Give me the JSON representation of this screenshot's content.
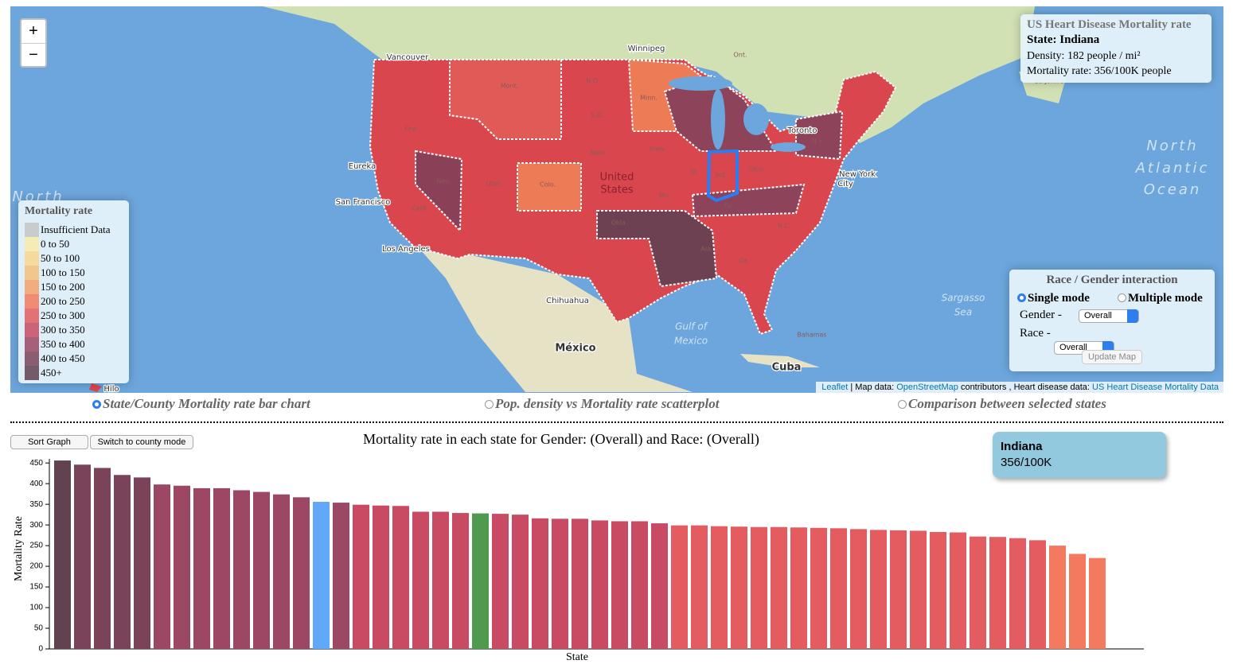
{
  "map": {
    "zoom_in": "+",
    "zoom_out": "−",
    "labels": [
      "Vancouver",
      "Winnipeg",
      "Ont.",
      "Eureka",
      "San Francisco",
      "Los Angeles",
      "Chihuahua",
      "México",
      "Gulf of",
      "Mexico",
      "Cuba",
      "Bahamas",
      "Toronto",
      "New York",
      "City",
      "North",
      "Atlantic",
      "Ocean",
      "Sargasso",
      "Sea",
      "Hilo",
      "United",
      "States",
      "St. John's",
      "North",
      "Mont.",
      "N.D.",
      "S.D.",
      "Nebr.",
      "Minn.",
      "Iowa",
      "Ore.",
      "Nev.",
      "Utah",
      "Colo.",
      "Calif.",
      "Okla.",
      "Mo.",
      "Ill.",
      "Ind.",
      "Ohio",
      "Ky.",
      "N.Y.",
      "Ga.",
      "Ala.",
      "N.C."
    ],
    "info": {
      "title": "US Heart Disease Mortality rate",
      "state": "State: Indiana",
      "density": "Density: 182 people / mi²",
      "mortality": "Mortality rate: 356/100K people"
    },
    "legend": {
      "title": "Mortality rate",
      "items": [
        {
          "label": "Insufficient Data",
          "color": "#c5c5c5"
        },
        {
          "label": "0 to 50",
          "color": "#f9eaa8"
        },
        {
          "label": "50 to 100",
          "color": "#f8d78d"
        },
        {
          "label": "100 to 150",
          "color": "#f6bf7b"
        },
        {
          "label": "150 to 200",
          "color": "#f6a06a"
        },
        {
          "label": "200 to 250",
          "color": "#f37a5f"
        },
        {
          "label": "250 to 300",
          "color": "#e45c60"
        },
        {
          "label": "300 to 350",
          "color": "#c94b63"
        },
        {
          "label": "350 to 400",
          "color": "#9c4763"
        },
        {
          "label": "400 to 450",
          "color": "#7b4359"
        },
        {
          "label": "450+",
          "color": "#624150"
        }
      ]
    },
    "controls": {
      "title": "Race / Gender interaction",
      "modes": [
        "Single mode",
        "Multiple mode"
      ],
      "gender_label": "Gender -",
      "gender_value": "Overall",
      "race_label": "Race -",
      "race_value": "Overall",
      "button": "Update Map"
    },
    "attribution": [
      "Leaflet",
      " | Map data: ",
      "OpenStreetMap",
      " contributors , Heart disease data: ",
      "US Heart Disease Mortality Data"
    ]
  },
  "views": [
    "State/County Mortality rate bar chart",
    "Pop. density vs Mortality rate scatterplot",
    "Comparison between selected states"
  ],
  "buttons": [
    "Sort Graph",
    "Switch to county mode"
  ],
  "tooltip": {
    "title": "Indiana",
    "value": "356/100K"
  },
  "chart_data": {
    "type": "bar",
    "title": "Mortality rate in each state for Gender: (Overall) and Race: (Overall)",
    "x_label": "State",
    "y_label": "Mortality Rate",
    "categories": [
      null,
      null,
      null,
      null,
      null,
      null,
      null,
      null,
      null,
      null,
      null,
      null,
      null,
      null,
      null,
      null,
      null,
      null,
      null,
      null,
      null,
      null,
      null,
      null,
      null,
      null,
      null,
      null,
      null,
      null,
      null,
      null,
      null,
      null,
      null,
      null,
      null,
      null,
      null,
      null,
      null,
      null,
      null,
      null,
      null,
      null,
      null,
      null,
      null,
      null,
      null,
      null,
      null
    ],
    "values": [
      456,
      446,
      438,
      421,
      415,
      398,
      395,
      389,
      389,
      384,
      380,
      374,
      367,
      356,
      354,
      349,
      347,
      346,
      332,
      332,
      329,
      328,
      327,
      325,
      316,
      315,
      315,
      311,
      309,
      309,
      304,
      299,
      299,
      297,
      296,
      295,
      295,
      294,
      293,
      292,
      290,
      288,
      287,
      286,
      283,
      282,
      272,
      271,
      268,
      263,
      250,
      230,
      220
    ],
    "colors": [
      "#624150",
      "#7b4359",
      "#7b4359",
      "#7b4359",
      "#7b4359",
      "#9c4763",
      "#9c4763",
      "#9c4763",
      "#9c4763",
      "#9c4763",
      "#9c4763",
      "#9c4763",
      "#9c4763",
      "#62a8f8",
      "#9c4763",
      "#c94b63",
      "#c94b63",
      "#c94b63",
      "#c94b63",
      "#c94b63",
      "#c94b63",
      "#4f9a4f",
      "#c94b63",
      "#c94b63",
      "#c94b63",
      "#c94b63",
      "#c94b63",
      "#c94b63",
      "#c94b63",
      "#c94b63",
      "#c94b63",
      "#e45c60",
      "#e45c60",
      "#e45c60",
      "#e45c60",
      "#e45c60",
      "#e45c60",
      "#e45c60",
      "#e45c60",
      "#e45c60",
      "#e45c60",
      "#e45c60",
      "#e45c60",
      "#e45c60",
      "#e45c60",
      "#e45c60",
      "#e45c60",
      "#e45c60",
      "#e45c60",
      "#e45c60",
      "#f37a5f",
      "#f37a5f",
      "#f37a5f"
    ],
    "ylim": [
      0,
      460
    ],
    "yticks": [
      0,
      50,
      100,
      150,
      200,
      250,
      300,
      350,
      400,
      450
    ]
  }
}
